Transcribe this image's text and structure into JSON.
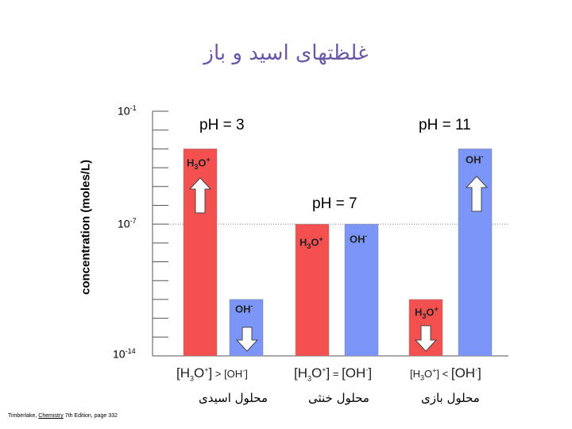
{
  "title": "غلظتهای اسید و باز",
  "citation": {
    "author": "Timberlake, ",
    "book": "Chemistry",
    "rest": " 7th Edition, page 332"
  },
  "chart_data": {
    "type": "bar",
    "ylabel": "concentration (moles/L)",
    "yscale": "log",
    "y_ticks": [
      {
        "base": "10",
        "exp": "-1"
      },
      {
        "base": "10",
        "exp": "-7"
      },
      {
        "base": "10",
        "exp": "-14"
      }
    ],
    "ylim": [
      1e-14,
      0.1
    ],
    "groups": [
      {
        "ph_label": "pH = 3",
        "solution": "محلول اسیدی",
        "comparison": "[H3O+] > [OH-]",
        "bars": [
          {
            "species": "H3O+",
            "value": 0.001,
            "color": "#f55050"
          },
          {
            "species": "OH-",
            "value": 1e-11,
            "color": "#7b96f8"
          }
        ]
      },
      {
        "ph_label": "pH = 7",
        "solution": "محلول خنثی",
        "comparison": "[H3O+] = [OH-]",
        "bars": [
          {
            "species": "H3O+",
            "value": 1e-07,
            "color": "#f55050"
          },
          {
            "species": "OH-",
            "value": 1e-07,
            "color": "#7b96f8"
          }
        ]
      },
      {
        "ph_label": "pH = 11",
        "solution": "محلول بازی",
        "comparison": "[H3O+] < [OH-]",
        "bars": [
          {
            "species": "H3O+",
            "value": 1e-11,
            "color": "#f55050"
          },
          {
            "species": "OH-",
            "value": 0.001,
            "color": "#7b96f8"
          }
        ]
      }
    ],
    "reference_line": {
      "value": 1e-07,
      "style": "dotted"
    }
  }
}
